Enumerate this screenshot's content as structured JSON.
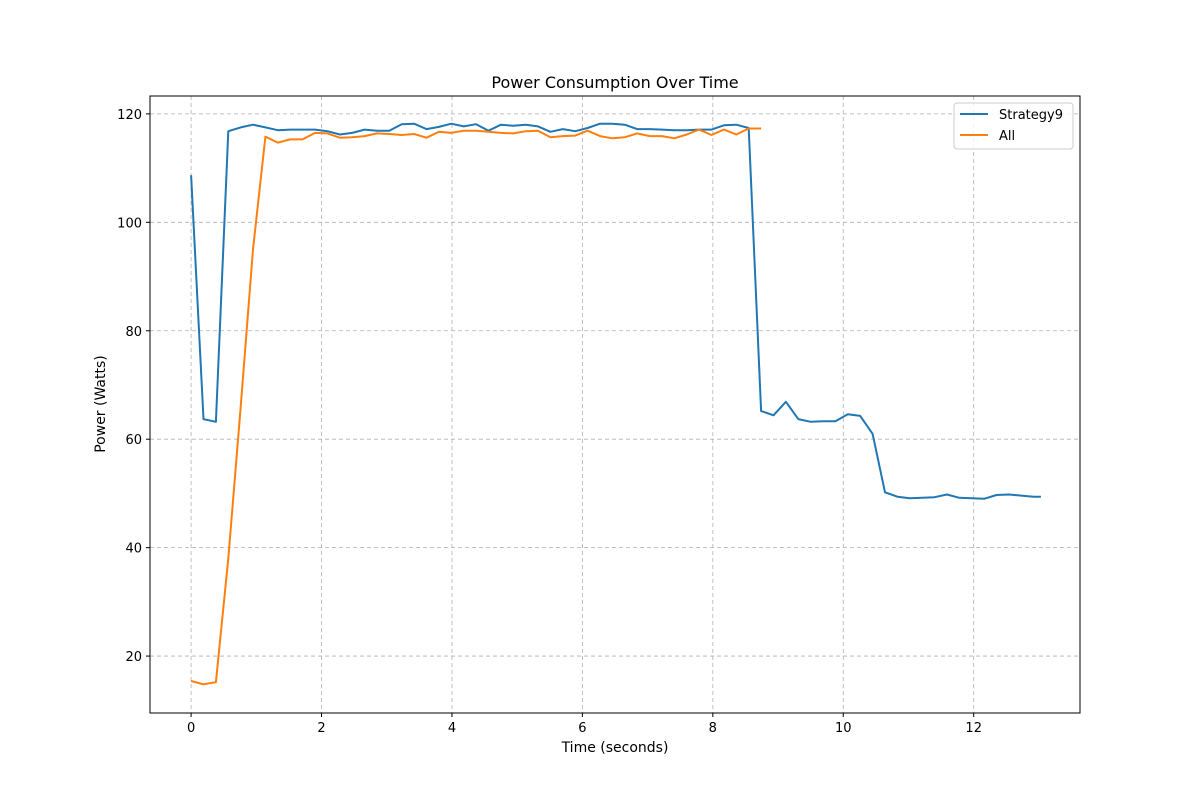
{
  "chart_data": {
    "type": "line",
    "title": "Power Consumption Over Time",
    "xlabel": "Time (seconds)",
    "ylabel": "Power (Watts)",
    "xlim": [
      -0.63,
      13.63
    ],
    "ylim": [
      9.5,
      123.3
    ],
    "xticks": [
      0,
      2,
      4,
      6,
      8,
      10,
      12
    ],
    "yticks": [
      20,
      40,
      60,
      80,
      100,
      120
    ],
    "grid": true,
    "grid_style": "dashed",
    "legend_position": "top-right",
    "series": [
      {
        "name": "Strategy9",
        "color": "#1f77b4",
        "x": [
          0.0,
          0.19,
          0.38,
          0.57,
          0.76,
          0.95,
          1.14,
          1.33,
          1.52,
          1.71,
          1.9,
          2.09,
          2.28,
          2.47,
          2.66,
          2.85,
          3.04,
          3.23,
          3.42,
          3.61,
          3.8,
          3.99,
          4.18,
          4.37,
          4.56,
          4.75,
          4.94,
          5.13,
          5.32,
          5.51,
          5.7,
          5.89,
          6.08,
          6.27,
          6.46,
          6.65,
          6.84,
          7.03,
          7.22,
          7.41,
          7.6,
          7.79,
          7.98,
          8.17,
          8.36,
          8.55,
          8.74,
          8.93,
          9.12,
          9.31,
          9.5,
          9.69,
          9.88,
          10.07,
          10.26,
          10.45,
          10.64,
          10.83,
          11.02,
          11.21,
          11.4,
          11.59,
          11.78,
          11.97,
          12.16,
          12.35,
          12.54,
          12.73,
          12.92,
          13.03
        ],
        "y": [
          108.7,
          63.7,
          63.2,
          116.8,
          117.5,
          118.0,
          117.5,
          117.0,
          117.1,
          117.1,
          117.1,
          116.8,
          116.2,
          116.5,
          117.1,
          116.9,
          116.9,
          118.1,
          118.2,
          117.2,
          117.6,
          118.2,
          117.7,
          118.1,
          116.9,
          118.0,
          117.8,
          118.0,
          117.7,
          116.7,
          117.2,
          116.8,
          117.4,
          118.2,
          118.2,
          118.0,
          117.2,
          117.2,
          117.1,
          117.0,
          117.0,
          117.1,
          117.1,
          117.9,
          118.0,
          117.4,
          65.2,
          64.4,
          66.9,
          63.7,
          63.2,
          63.3,
          63.3,
          64.6,
          64.3,
          61.0,
          50.2,
          49.4,
          49.1,
          49.2,
          49.3,
          49.8,
          49.2,
          49.1,
          49.0,
          49.7,
          49.8,
          49.6,
          49.4,
          49.4
        ]
      },
      {
        "name": "All",
        "color": "#ff7f0e",
        "x": [
          0.0,
          0.19,
          0.38,
          0.57,
          0.76,
          0.95,
          1.14,
          1.33,
          1.52,
          1.71,
          1.9,
          2.09,
          2.28,
          2.47,
          2.66,
          2.85,
          3.04,
          3.23,
          3.42,
          3.61,
          3.8,
          3.99,
          4.18,
          4.37,
          4.56,
          4.75,
          4.94,
          5.13,
          5.32,
          5.51,
          5.7,
          5.89,
          6.08,
          6.27,
          6.46,
          6.65,
          6.84,
          7.03,
          7.22,
          7.41,
          7.6,
          7.79,
          7.98,
          8.17,
          8.36,
          8.55,
          8.74
        ],
        "y": [
          15.4,
          14.8,
          15.2,
          38.0,
          66.0,
          95.0,
          115.8,
          114.7,
          115.3,
          115.3,
          116.5,
          116.4,
          115.6,
          115.7,
          115.9,
          116.4,
          116.3,
          116.1,
          116.3,
          115.6,
          116.7,
          116.5,
          116.9,
          116.9,
          116.7,
          116.5,
          116.4,
          116.8,
          116.9,
          115.7,
          115.9,
          116.0,
          116.9,
          115.9,
          115.5,
          115.7,
          116.4,
          115.9,
          115.9,
          115.5,
          116.2,
          117.1,
          116.1,
          117.1,
          116.2,
          117.3,
          117.3
        ]
      }
    ]
  }
}
